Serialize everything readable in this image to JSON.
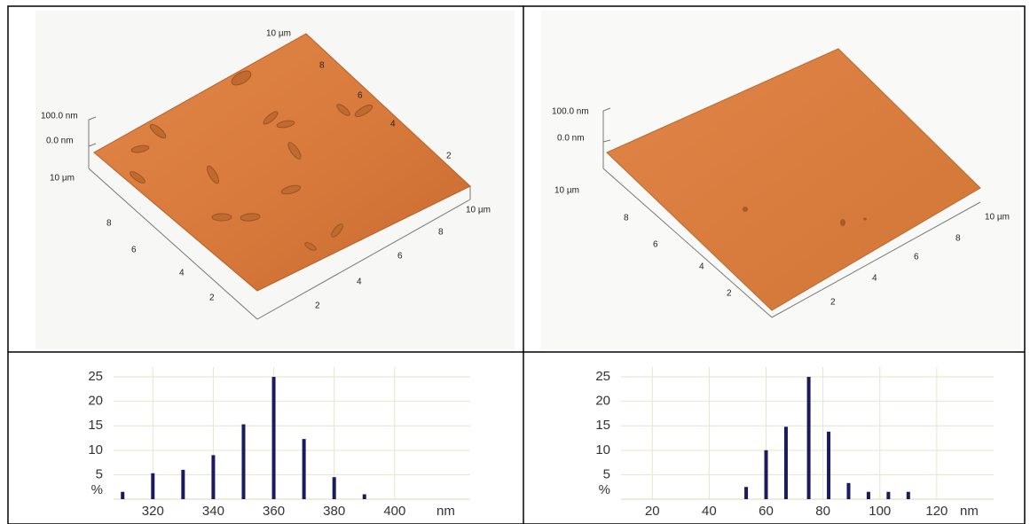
{
  "images": [
    {
      "z_labels": [
        "100.0 nm",
        "0.0 nm"
      ],
      "back_labels": [
        "10 µm",
        "8",
        "6",
        "4",
        "2"
      ],
      "y_labels": [
        "10 µm",
        "8",
        "6",
        "4",
        "2"
      ],
      "x_labels": [
        "2",
        "4",
        "6",
        "8",
        "10 µm"
      ]
    },
    {
      "z_labels": [
        "100.0 nm",
        "0.0 nm"
      ],
      "y_labels": [
        "10 µm",
        "8",
        "6",
        "4",
        "2"
      ],
      "x_labels": [
        "2",
        "4",
        "6",
        "8",
        "10 µm"
      ]
    }
  ],
  "chart_data": [
    {
      "type": "bar",
      "x": [
        310,
        320,
        330,
        340,
        350,
        360,
        370,
        380,
        390
      ],
      "values": [
        1.5,
        5.3,
        6,
        9,
        15.3,
        25,
        12.3,
        4.5,
        1
      ],
      "color": "#1a1a5e",
      "xlim": [
        307,
        425
      ],
      "xticks": [
        320,
        340,
        360,
        380,
        400
      ],
      "xlabel": "nm",
      "ylim": [
        0,
        27
      ],
      "yticks": [
        5,
        10,
        15,
        20,
        25
      ],
      "ylabel": "%",
      "grid": true
    },
    {
      "type": "bar",
      "x": [
        53,
        60,
        67,
        75,
        82,
        89,
        96,
        103,
        110
      ],
      "values": [
        2.5,
        10,
        14.8,
        25,
        13.8,
        3.3,
        1.5,
        1.5,
        1.5
      ],
      "color": "#1a1a5e",
      "xlim": [
        9,
        140
      ],
      "xticks": [
        20,
        40,
        60,
        80,
        100,
        120
      ],
      "xlabel": "nm",
      "ylim": [
        0,
        27
      ],
      "yticks": [
        5,
        10,
        15,
        20,
        25
      ],
      "ylabel": "%",
      "grid": true
    }
  ]
}
